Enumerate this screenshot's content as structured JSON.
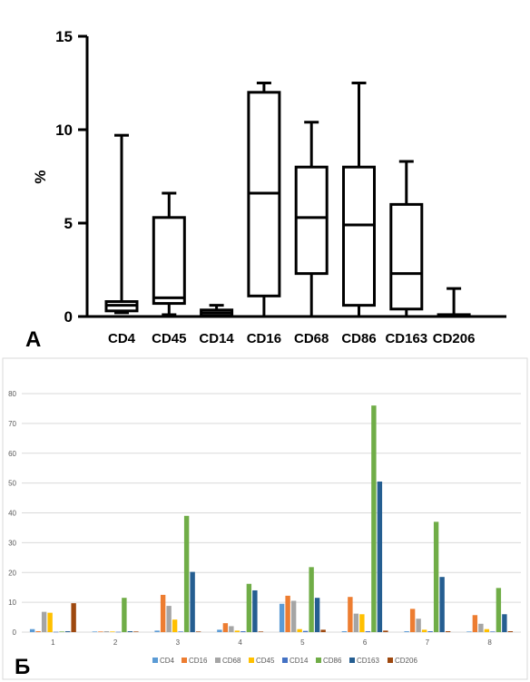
{
  "chart_data": [
    {
      "type": "box",
      "panel_label": "А",
      "ylabel": "%",
      "ylim": [
        0,
        15
      ],
      "yticks": [
        "0",
        "5",
        "10",
        "15"
      ],
      "categories": [
        "CD4",
        "CD45",
        "CD14",
        "CD16",
        "CD68",
        "CD86",
        "CD163",
        "CD206"
      ],
      "boxes": [
        {
          "min": 0.2,
          "q1": 0.3,
          "median": 0.6,
          "q3": 0.8,
          "max": 9.7
        },
        {
          "min": 0.1,
          "q1": 0.7,
          "median": 1.0,
          "q3": 5.3,
          "max": 6.6
        },
        {
          "min": 0.0,
          "q1": 0.05,
          "median": 0.2,
          "q3": 0.35,
          "max": 0.6
        },
        {
          "min": 0.0,
          "q1": 1.1,
          "median": 6.6,
          "q3": 12.0,
          "max": 12.5
        },
        {
          "min": 0.0,
          "q1": 2.3,
          "median": 5.3,
          "q3": 8.0,
          "max": 10.4
        },
        {
          "min": 0.0,
          "q1": 0.6,
          "median": 4.9,
          "q3": 8.0,
          "max": 12.5
        },
        {
          "min": 0.0,
          "q1": 0.4,
          "median": 2.3,
          "q3": 6.0,
          "max": 8.3
        },
        {
          "min": 0.0,
          "q1": 0.0,
          "median": 0.05,
          "q3": 0.1,
          "max": 1.5
        }
      ]
    },
    {
      "type": "bar",
      "panel_label": "Б",
      "ylim": [
        0,
        80
      ],
      "yticks": [
        "0",
        "10",
        "20",
        "30",
        "40",
        "50",
        "60",
        "70",
        "80"
      ],
      "categories": [
        "1",
        "2",
        "3",
        "4",
        "5",
        "6",
        "7",
        "8"
      ],
      "series": [
        {
          "name": "CD4",
          "color": "#5B9BD5",
          "values": [
            1.0,
            0.2,
            0.5,
            0.8,
            9.5,
            0.3,
            0.3,
            0.2
          ]
        },
        {
          "name": "CD16",
          "color": "#ED7D31",
          "values": [
            0.3,
            0.2,
            12.5,
            3.0,
            12.2,
            11.8,
            7.8,
            5.7
          ]
        },
        {
          "name": "CD68",
          "color": "#A5A5A5",
          "values": [
            6.8,
            0.3,
            8.8,
            2.0,
            10.5,
            6.2,
            4.5,
            2.8
          ]
        },
        {
          "name": "CD45",
          "color": "#FFC000",
          "values": [
            6.5,
            0.2,
            4.2,
            0.5,
            1.0,
            6.0,
            0.8,
            1.0
          ]
        },
        {
          "name": "CD14",
          "color": "#4472C4",
          "values": [
            0.1,
            0.1,
            0.2,
            0.3,
            0.4,
            0.3,
            0.3,
            0.2
          ]
        },
        {
          "name": "CD86",
          "color": "#70AD47",
          "values": [
            0.2,
            11.5,
            39.0,
            16.2,
            21.8,
            76.0,
            37.0,
            14.8
          ]
        },
        {
          "name": "CD163",
          "color": "#255E91",
          "values": [
            0.3,
            0.3,
            20.2,
            14.0,
            11.5,
            50.5,
            18.5,
            6.0
          ]
        },
        {
          "name": "CD206",
          "color": "#9E480E",
          "values": [
            9.7,
            0.2,
            0.2,
            0.2,
            0.8,
            0.5,
            0.3,
            0.3
          ]
        }
      ]
    }
  ]
}
